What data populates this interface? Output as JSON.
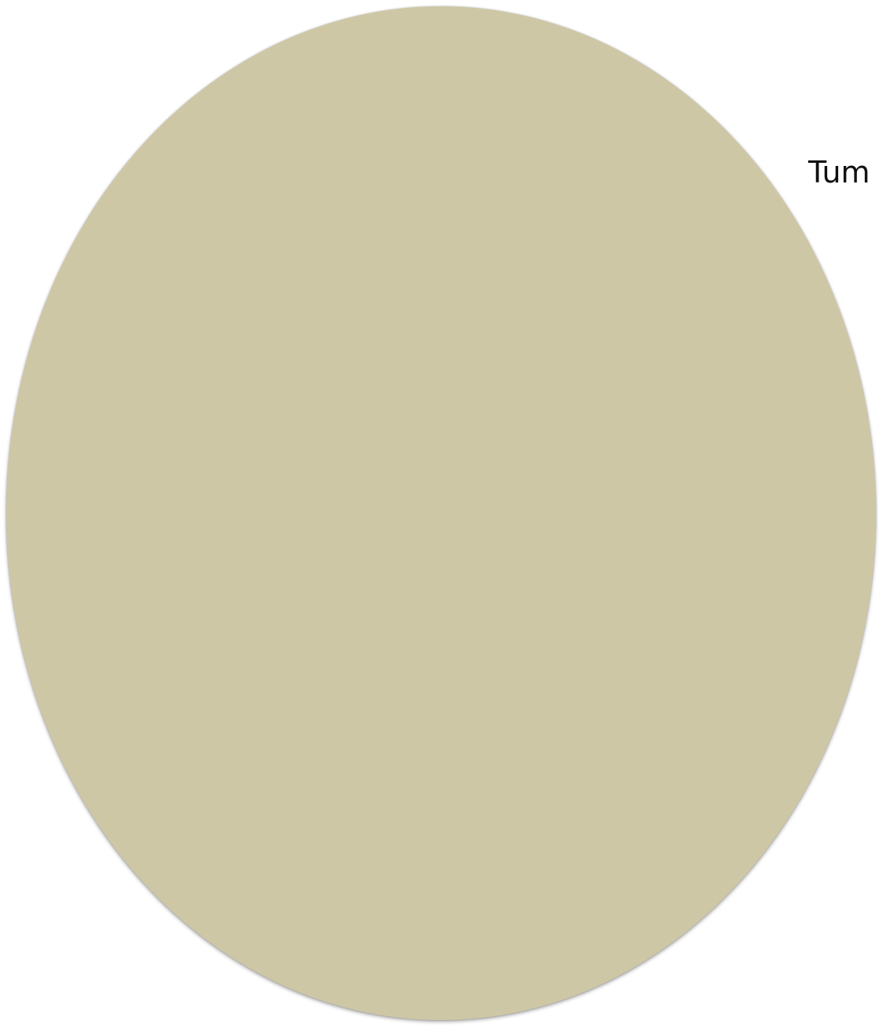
{
  "shape": {
    "fill_color": "#cec7a6"
  },
  "labels": {
    "tum": "Tum"
  }
}
